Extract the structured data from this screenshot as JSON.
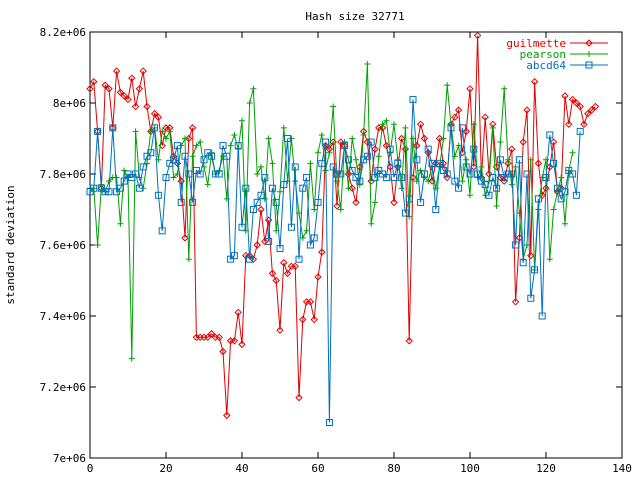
{
  "chart_data": {
    "type": "line",
    "title": "Hash size 32771",
    "xlabel": "",
    "ylabel": "standard deviation",
    "xlim": [
      0,
      140
    ],
    "ylim": [
      7000000,
      8200000
    ],
    "x_ticks": [
      "0",
      "20",
      "40",
      "60",
      "80",
      "100",
      "120",
      "140"
    ],
    "y_ticks": [
      "7e+06",
      "7.2e+06",
      "7.4e+06",
      "7.6e+06",
      "7.8e+06",
      "8e+06",
      "8.2e+06"
    ],
    "legend_position": "top-right",
    "grid": false,
    "series": [
      {
        "name": "guilmette",
        "color": "#e00000",
        "marker": "diamond",
        "values": [
          8040000,
          8060000,
          7920000,
          7760000,
          8050000,
          8040000,
          7930000,
          8090000,
          8030000,
          8020000,
          8010000,
          8070000,
          7990000,
          8040000,
          8090000,
          7990000,
          7920000,
          7970000,
          7960000,
          7880000,
          7930000,
          7930000,
          7850000,
          7830000,
          7780000,
          7620000,
          7900000,
          7930000,
          7340000,
          7340000,
          7340000,
          7340000,
          7350000,
          7340000,
          7340000,
          7300000,
          7120000,
          7330000,
          7330000,
          7410000,
          7320000,
          7570000,
          7570000,
          7560000,
          7600000,
          7700000,
          7610000,
          7670000,
          7520000,
          7500000,
          7360000,
          7550000,
          7520000,
          7540000,
          7540000,
          7170000,
          7390000,
          7440000,
          7440000,
          7390000,
          7510000,
          7580000,
          7880000,
          7870000,
          7890000,
          7710000,
          7890000,
          7880000,
          7800000,
          7760000,
          7720000,
          7820000,
          7920000,
          7890000,
          7780000,
          7870000,
          7930000,
          7930000,
          7880000,
          7820000,
          7720000,
          7820000,
          7900000,
          7870000,
          7330000,
          7790000,
          7880000,
          7940000,
          7900000,
          7860000,
          7780000,
          7830000,
          7900000,
          7830000,
          7790000,
          7940000,
          7960000,
          7980000,
          7860000,
          7920000,
          8040000,
          7820000,
          8190000,
          7790000,
          7960000,
          7800000,
          7940000,
          7820000,
          7790000,
          7780000,
          7830000,
          7870000,
          7440000,
          7620000,
          7890000,
          7980000,
          7570000,
          8060000,
          7830000,
          7740000,
          7760000,
          7820000,
          7890000,
          7750000,
          7760000,
          8020000,
          7940000,
          8010000,
          8000000,
          7990000,
          7940000,
          7970000,
          7980000,
          7990000
        ]
      },
      {
        "name": "pearson",
        "color": "#00a000",
        "marker": "plus",
        "values": [
          7760000,
          7760000,
          7600000,
          7770000,
          7750000,
          7780000,
          7790000,
          7790000,
          7660000,
          7810000,
          7790000,
          7280000,
          7920000,
          7790000,
          7760000,
          7830000,
          7920000,
          7930000,
          7840000,
          7920000,
          7900000,
          7920000,
          7790000,
          7800000,
          7880000,
          7900000,
          7560000,
          7850000,
          7880000,
          7890000,
          7820000,
          7770000,
          7860000,
          7800000,
          7810000,
          7850000,
          7730000,
          7880000,
          7910000,
          7870000,
          7950000,
          7640000,
          8000000,
          8040000,
          7800000,
          7820000,
          7730000,
          7900000,
          7830000,
          7640000,
          7750000,
          7930000,
          7780000,
          7900000,
          7780000,
          7690000,
          7620000,
          7640000,
          7830000,
          7700000,
          7860000,
          7910000,
          7810000,
          7860000,
          7990000,
          7780000,
          7700000,
          7890000,
          7760000,
          7900000,
          7840000,
          7770000,
          7910000,
          8110000,
          7660000,
          7720000,
          7850000,
          7940000,
          7950000,
          7860000,
          7940000,
          7840000,
          7760000,
          7930000,
          7680000,
          7900000,
          7780000,
          7810000,
          7790000,
          7780000,
          7820000,
          7760000,
          7820000,
          7900000,
          8050000,
          7940000,
          7850000,
          7880000,
          7780000,
          7840000,
          7740000,
          7940000,
          7790000,
          7820000,
          7740000,
          7780000,
          7930000,
          7710000,
          7890000,
          8040000,
          7840000,
          7770000,
          7820000,
          7690000,
          7560000,
          7600000,
          7840000,
          7530000,
          7700000,
          7790000,
          7840000,
          7560000,
          7700000,
          7750000,
          7790000,
          7660000,
          7810000,
          7860000
        ]
      },
      {
        "name": "abcd64",
        "color": "#0070c0",
        "marker": "square",
        "values": [
          7750000,
          7760000,
          7920000,
          7760000,
          7750000,
          7750000,
          7930000,
          7750000,
          7760000,
          7780000,
          7800000,
          7790000,
          7800000,
          7760000,
          7820000,
          7850000,
          7860000,
          7930000,
          7740000,
          7640000,
          7790000,
          7830000,
          7840000,
          7880000,
          7720000,
          7850000,
          7800000,
          7720000,
          7810000,
          7800000,
          7840000,
          7860000,
          7850000,
          7800000,
          7800000,
          7880000,
          7850000,
          7560000,
          7570000,
          7880000,
          7650000,
          7760000,
          7560000,
          7700000,
          7720000,
          7740000,
          7790000,
          7610000,
          7760000,
          7720000,
          7590000,
          7770000,
          7900000,
          7650000,
          7820000,
          7560000,
          7760000,
          7790000,
          7600000,
          7620000,
          7720000,
          7830000,
          7890000,
          7100000,
          7820000,
          7800000,
          7800000,
          7880000,
          7840000,
          7810000,
          7790000,
          7780000,
          7840000,
          7850000,
          7890000,
          7790000,
          7810000,
          7800000,
          7790000,
          7870000,
          7790000,
          7830000,
          7790000,
          7690000,
          7730000,
          8010000,
          7840000,
          7720000,
          7800000,
          7870000,
          7830000,
          7700000,
          7830000,
          7810000,
          7800000,
          7930000,
          7780000,
          7760000,
          7930000,
          7820000,
          7800000,
          7870000,
          7800000,
          7780000,
          7770000,
          7740000,
          7790000,
          7760000,
          7840000,
          7790000,
          7800000,
          7800000,
          7600000,
          7840000,
          7550000,
          7800000,
          7450000,
          7530000,
          7730000,
          7400000,
          7790000,
          7910000,
          7830000,
          7760000,
          7730000,
          7750000,
          7810000,
          7800000,
          7740000,
          7920000
        ]
      }
    ]
  }
}
